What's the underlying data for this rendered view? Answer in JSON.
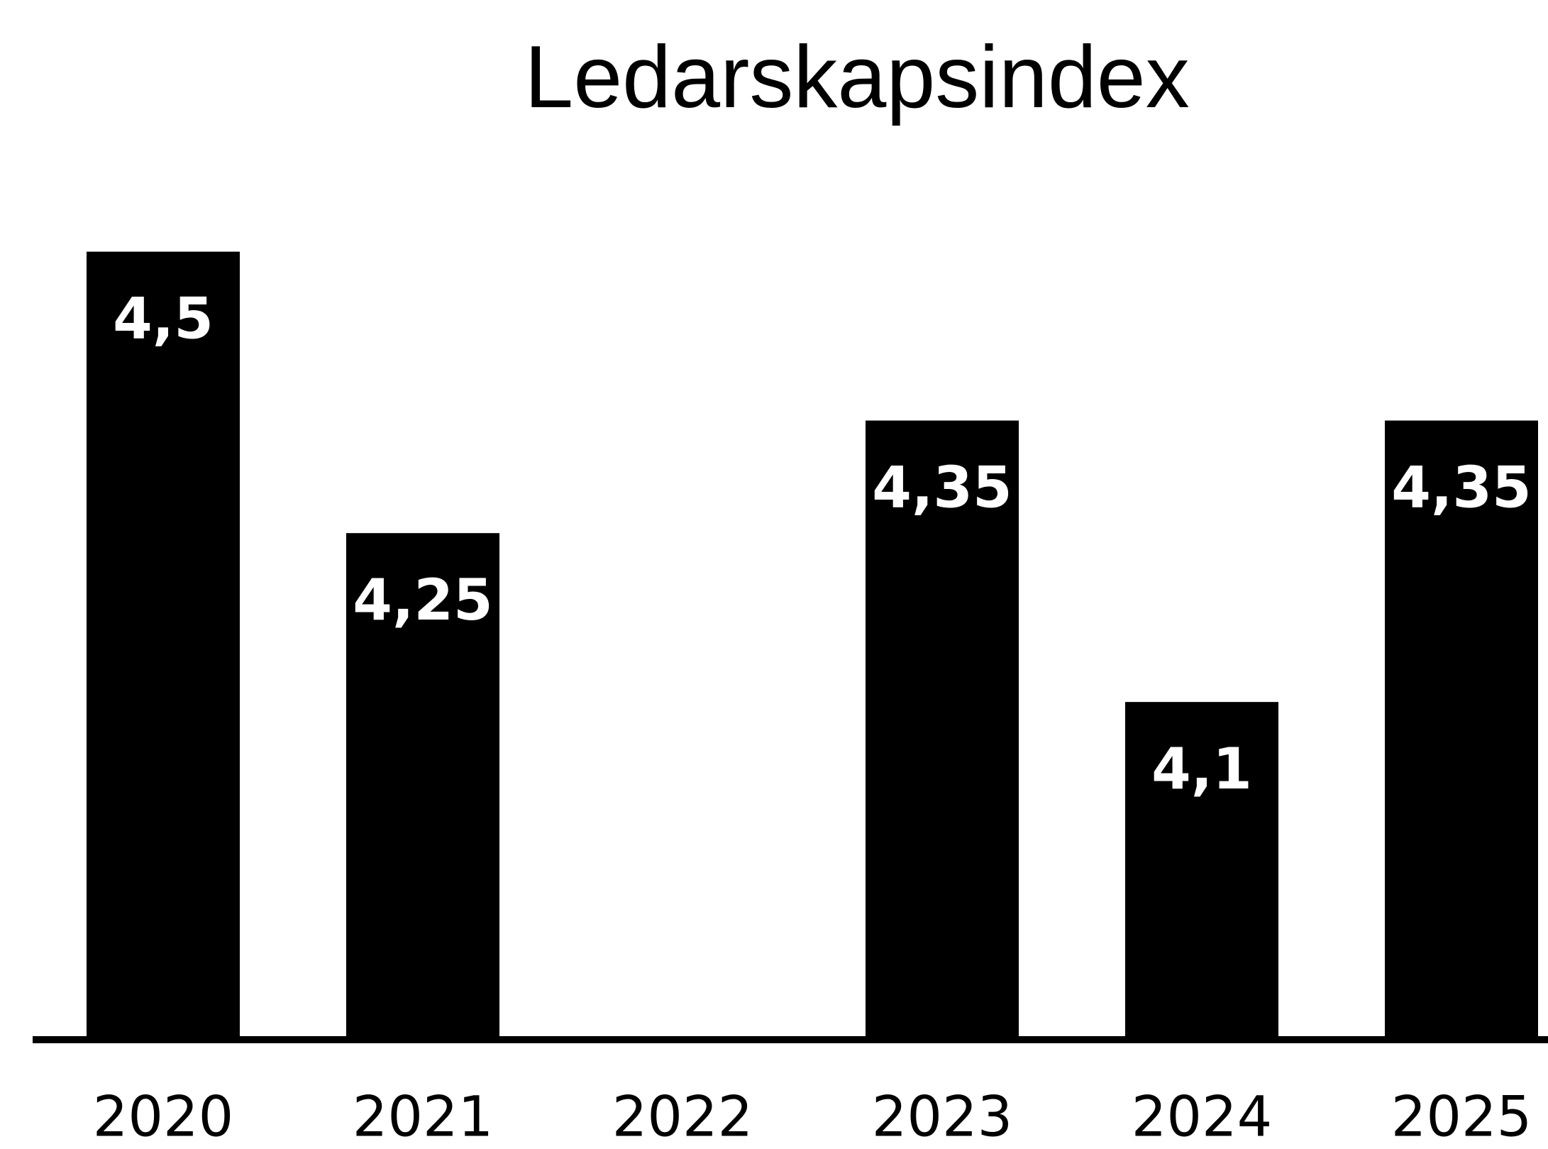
{
  "chart_data": {
    "type": "bar",
    "title": "Ledarskapsindex",
    "categories": [
      "2020",
      "2021",
      "2022",
      "2023",
      "2024",
      "2025"
    ],
    "values": [
      4.5,
      4.25,
      null,
      4.35,
      4.1,
      4.35
    ],
    "value_labels": [
      "4,5",
      "4,25",
      null,
      "4,35",
      "4,1",
      "4,35"
    ],
    "color": "#000000",
    "ylim": [
      3.8,
      4.6
    ]
  }
}
